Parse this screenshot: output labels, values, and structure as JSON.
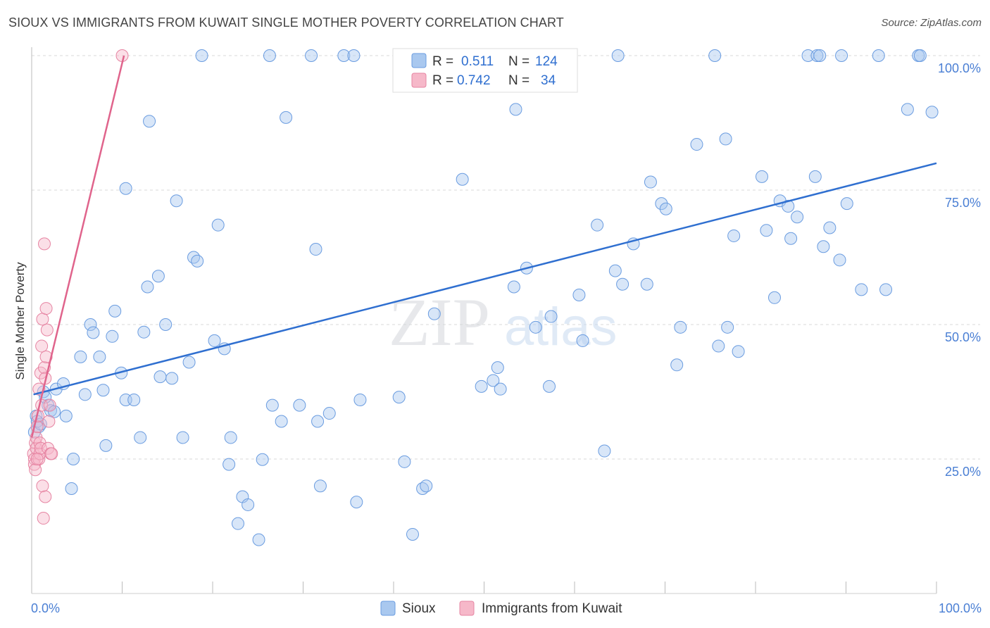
{
  "header": {
    "title": "SIOUX VS IMMIGRANTS FROM KUWAIT SINGLE MOTHER POVERTY CORRELATION CHART",
    "source": "Source: ZipAtlas.com"
  },
  "watermark": {
    "zip": "ZIP",
    "atlas": "atlas"
  },
  "legend": {
    "r_label": "R =",
    "n_label": "N =",
    "rows": [
      {
        "series": "Sioux",
        "r": "0.511",
        "n": "124"
      },
      {
        "series": "Immigrants from Kuwait",
        "r": "0.742",
        "n": "34"
      }
    ]
  },
  "colors": {
    "sioux_fill": "#a9c8ef",
    "sioux_stroke": "#6a9ce0",
    "sioux_line": "#2f6fd0",
    "kuwait_fill": "#f6b8c9",
    "kuwait_stroke": "#e684a2",
    "kuwait_line": "#e0648c",
    "grid": "#d9d9d9",
    "axis_text": "#4a7fd4"
  },
  "chart_data": {
    "type": "scatter",
    "title": "SIOUX VS IMMIGRANTS FROM KUWAIT SINGLE MOTHER POVERTY CORRELATION CHART",
    "xlabel": "",
    "ylabel": "Single Mother Poverty",
    "xlim": [
      0,
      100
    ],
    "ylim": [
      0,
      102
    ],
    "x_tick_labels": [
      "0.0%",
      "100.0%"
    ],
    "y_ticks": [
      {
        "value": 25,
        "label": "25.0%"
      },
      {
        "value": 50,
        "label": "50.0%"
      },
      {
        "value": 75,
        "label": "75.0%"
      },
      {
        "value": 100,
        "label": "100.0%"
      }
    ],
    "grid": true,
    "legend_position": "bottom",
    "series": [
      {
        "name": "Sioux",
        "r": 0.511,
        "n": 124,
        "trend": {
          "x0": 0.2,
          "y0": 37.0,
          "x1": 100,
          "y1": 80.0
        },
        "points": [
          [
            0.5,
            33
          ],
          [
            0.8,
            31
          ],
          [
            1.3,
            37.5
          ],
          [
            1.8,
            35
          ],
          [
            2.1,
            34
          ],
          [
            2.7,
            38
          ],
          [
            3.5,
            39
          ],
          [
            3.8,
            33
          ],
          [
            4.6,
            25
          ],
          [
            4.4,
            19.5
          ],
          [
            5.4,
            44
          ],
          [
            5.9,
            37
          ],
          [
            6.5,
            50
          ],
          [
            6.8,
            48.5
          ],
          [
            7.5,
            44
          ],
          [
            7.9,
            37.8
          ],
          [
            8.2,
            27.5
          ],
          [
            8.9,
            47.8
          ],
          [
            9.2,
            52.5
          ],
          [
            9.9,
            41
          ],
          [
            10.4,
            36
          ],
          [
            10.4,
            75.3
          ],
          [
            11.3,
            36
          ],
          [
            12,
            29
          ],
          [
            12.4,
            48.6
          ],
          [
            12.8,
            57
          ],
          [
            13,
            87.8
          ],
          [
            14,
            59
          ],
          [
            14.2,
            40.3
          ],
          [
            14.8,
            50
          ],
          [
            15.5,
            40
          ],
          [
            16,
            73
          ],
          [
            16.7,
            29
          ],
          [
            17.4,
            43
          ],
          [
            17.9,
            62.5
          ],
          [
            18.3,
            61.8
          ],
          [
            18.8,
            100
          ],
          [
            20.2,
            47
          ],
          [
            20.6,
            68.5
          ],
          [
            21.3,
            45.5
          ],
          [
            21.8,
            24
          ],
          [
            22,
            29
          ],
          [
            23.3,
            18
          ],
          [
            22.8,
            13
          ],
          [
            23.9,
            16.5
          ],
          [
            25.1,
            10
          ],
          [
            25.5,
            24.9
          ],
          [
            26.3,
            100
          ],
          [
            27.6,
            32
          ],
          [
            26.6,
            35
          ],
          [
            28.1,
            88.5
          ],
          [
            29.6,
            35
          ],
          [
            30.9,
            100
          ],
          [
            31.4,
            64
          ],
          [
            31.6,
            32
          ],
          [
            31.9,
            20
          ],
          [
            32.9,
            33.5
          ],
          [
            34.5,
            100
          ],
          [
            35.6,
            100
          ],
          [
            35.9,
            17
          ],
          [
            36.3,
            36
          ],
          [
            40.6,
            36.5
          ],
          [
            41.2,
            24.5
          ],
          [
            42.1,
            11
          ],
          [
            43.2,
            19.5
          ],
          [
            43.6,
            20
          ],
          [
            44.5,
            52
          ],
          [
            49.7,
            38.5
          ],
          [
            47.6,
            77
          ],
          [
            51,
            39.6
          ],
          [
            49.6,
            100
          ],
          [
            51.5,
            42
          ],
          [
            51.8,
            38
          ],
          [
            53.3,
            57
          ],
          [
            53.5,
            90
          ],
          [
            54.2,
            100
          ],
          [
            55.7,
            49.5
          ],
          [
            54.7,
            60.5
          ],
          [
            57.2,
            38.5
          ],
          [
            57.4,
            51.5
          ],
          [
            59.5,
            100
          ],
          [
            60.5,
            55.5
          ],
          [
            60.9,
            47
          ],
          [
            62.5,
            68.5
          ],
          [
            63.3,
            26.5
          ],
          [
            64.5,
            60
          ],
          [
            64.8,
            100
          ],
          [
            65.3,
            57.5
          ],
          [
            66.5,
            65
          ],
          [
            68,
            57.5
          ],
          [
            68.4,
            76.5
          ],
          [
            69.6,
            72.5
          ],
          [
            70.1,
            71.5
          ],
          [
            71.3,
            42.5
          ],
          [
            71.7,
            49.5
          ],
          [
            73.5,
            83.5
          ],
          [
            75.5,
            100
          ],
          [
            75.9,
            46
          ],
          [
            76.7,
            84.5
          ],
          [
            76.9,
            49.5
          ],
          [
            77.6,
            66.5
          ],
          [
            78.1,
            45
          ],
          [
            80.7,
            77.5
          ],
          [
            81.2,
            67.5
          ],
          [
            82.1,
            55
          ],
          [
            82.7,
            73
          ],
          [
            83.6,
            72
          ],
          [
            83.9,
            66
          ],
          [
            84.6,
            70
          ],
          [
            85.8,
            100
          ],
          [
            86.8,
            100
          ],
          [
            86.6,
            77.5
          ],
          [
            87.1,
            100
          ],
          [
            87.5,
            64.5
          ],
          [
            88.2,
            68
          ],
          [
            89.3,
            62
          ],
          [
            89.5,
            100
          ],
          [
            90.1,
            72.5
          ],
          [
            91.7,
            56.5
          ],
          [
            93.6,
            100
          ],
          [
            94.4,
            56.5
          ],
          [
            96.8,
            90
          ],
          [
            98,
            100
          ],
          [
            98.2,
            100
          ],
          [
            99.5,
            89.5
          ],
          [
            0.3,
            30
          ],
          [
            0.6,
            32
          ],
          [
            1.0,
            31.5
          ],
          [
            1.5,
            36.5
          ],
          [
            2.5,
            33.8
          ]
        ]
      },
      {
        "name": "Immigrants from Kuwait",
        "r": 0.742,
        "n": 34,
        "trend": {
          "x0": 0.0,
          "y0": 29.0,
          "x1": 10.2,
          "y1": 100.0
        },
        "points": [
          [
            0.2,
            26
          ],
          [
            0.3,
            25
          ],
          [
            0.3,
            24
          ],
          [
            0.4,
            28
          ],
          [
            0.5,
            27
          ],
          [
            0.5,
            29
          ],
          [
            0.6,
            31
          ],
          [
            0.7,
            33
          ],
          [
            0.8,
            38
          ],
          [
            0.8,
            25
          ],
          [
            0.9,
            26
          ],
          [
            0.9,
            28
          ],
          [
            1.0,
            27
          ],
          [
            1.0,
            41
          ],
          [
            1.1,
            35
          ],
          [
            1.1,
            46
          ],
          [
            1.2,
            51
          ],
          [
            1.2,
            20
          ],
          [
            1.3,
            14
          ],
          [
            1.4,
            65
          ],
          [
            1.4,
            42
          ],
          [
            1.5,
            18
          ],
          [
            1.5,
            40
          ],
          [
            1.6,
            44
          ],
          [
            1.6,
            53
          ],
          [
            1.7,
            49
          ],
          [
            1.8,
            27
          ],
          [
            1.9,
            32
          ],
          [
            2.0,
            35
          ],
          [
            2.1,
            26
          ],
          [
            2.2,
            26
          ],
          [
            0.4,
            23
          ],
          [
            0.6,
            25
          ],
          [
            10.0,
            100
          ]
        ]
      }
    ]
  }
}
